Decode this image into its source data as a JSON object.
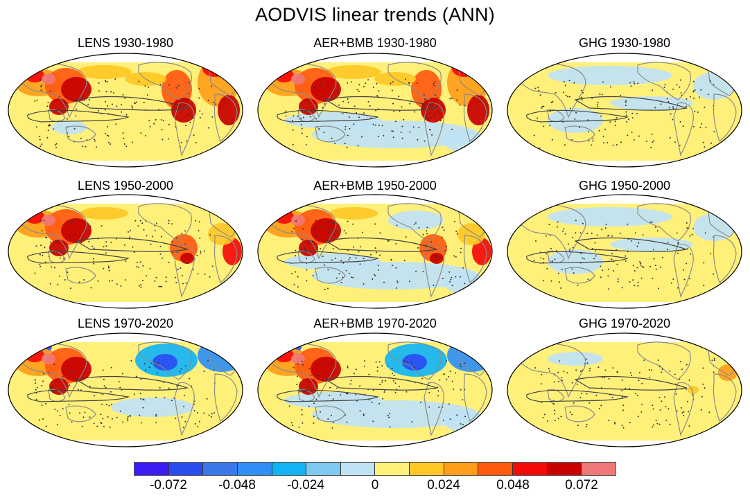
{
  "figure": {
    "title": "AODVIS linear trends (ANN)"
  },
  "palette": {
    "ocean_base": "#fff07a",
    "land_outline": "#8a8a8a",
    "contour": "#444444",
    "stipple": "#333333",
    "frame": "#000000"
  },
  "panels": [
    {
      "title": "LENS 1930-1980",
      "pattern": "aer_early"
    },
    {
      "title": "AER+BMB 1930-1980",
      "pattern": "aer_early_blue"
    },
    {
      "title": "GHG 1930-1980",
      "pattern": "ghg"
    },
    {
      "title": "LENS 1950-2000",
      "pattern": "aer_mid"
    },
    {
      "title": "AER+BMB 1950-2000",
      "pattern": "aer_mid_blue"
    },
    {
      "title": "GHG 1950-2000",
      "pattern": "ghg"
    },
    {
      "title": "LENS 1970-2020",
      "pattern": "aer_late"
    },
    {
      "title": "AER+BMB 1970-2020",
      "pattern": "aer_late_blue"
    },
    {
      "title": "GHG 1970-2020",
      "pattern": "ghg_late"
    }
  ],
  "colorbar": {
    "colors": [
      "#3b1cf5",
      "#2a4cf0",
      "#3b78e8",
      "#2f8ff5",
      "#12b4f5",
      "#7fc8f0",
      "#bfe2f5",
      "#fff07a",
      "#ffc825",
      "#ff9e1a",
      "#ff5a10",
      "#f50a0a",
      "#c80000",
      "#f07878"
    ],
    "ticks": [
      "-0.072",
      "-0.048",
      "-0.024",
      "0",
      "0.024",
      "0.048",
      "0.072"
    ]
  }
}
